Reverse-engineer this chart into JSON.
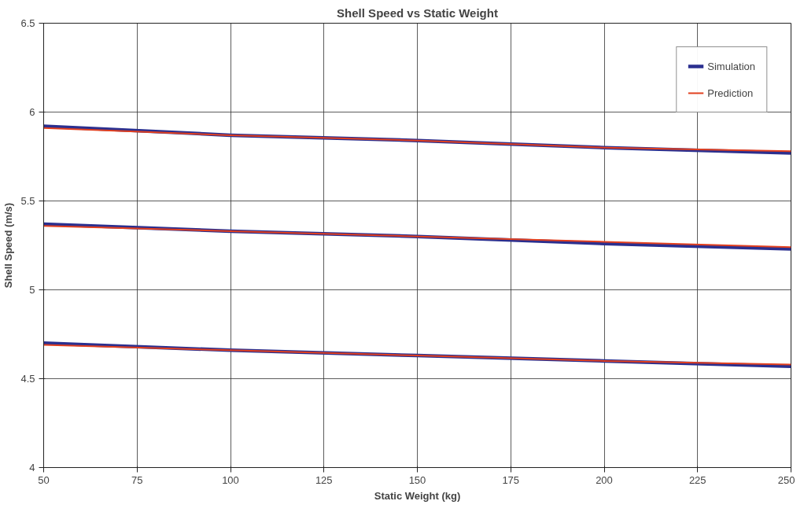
{
  "chart_data": {
    "type": "line",
    "title": "Shell Speed vs Static Weight",
    "xlabel": "Static Weight (kg)",
    "ylabel": "Shell Speed (m/s)",
    "x": [
      50,
      100,
      150,
      200,
      250
    ],
    "series": [
      {
        "name": "Simulation",
        "color": "#2b2f8f",
        "values": [
          5.92,
          5.87,
          5.84,
          5.8,
          5.77
        ]
      },
      {
        "name": "Prediction",
        "color": "#e2401f",
        "values": [
          5.91,
          5.87,
          5.84,
          5.8,
          5.78
        ]
      },
      {
        "color": "#2b2f8f",
        "values": [
          5.37,
          5.33,
          5.3,
          5.26,
          5.23
        ]
      },
      {
        "color": "#e2401f",
        "values": [
          5.36,
          5.33,
          5.3,
          5.27,
          5.24
        ]
      },
      {
        "color": "#2b2f8f",
        "values": [
          4.7,
          4.66,
          4.63,
          4.6,
          4.57
        ]
      },
      {
        "color": "#e2401f",
        "values": [
          4.69,
          4.66,
          4.63,
          4.6,
          4.58
        ]
      }
    ],
    "xlim": [
      50,
      250
    ],
    "xticks": [
      50,
      75,
      100,
      125,
      150,
      175,
      200,
      225,
      250
    ],
    "ylim": [
      4,
      6.5
    ],
    "yticks": [
      4,
      4.5,
      5,
      5.5,
      6,
      6.5
    ],
    "grid": true,
    "legend": "top right",
    "marker": "none",
    "line_style": "solid"
  }
}
